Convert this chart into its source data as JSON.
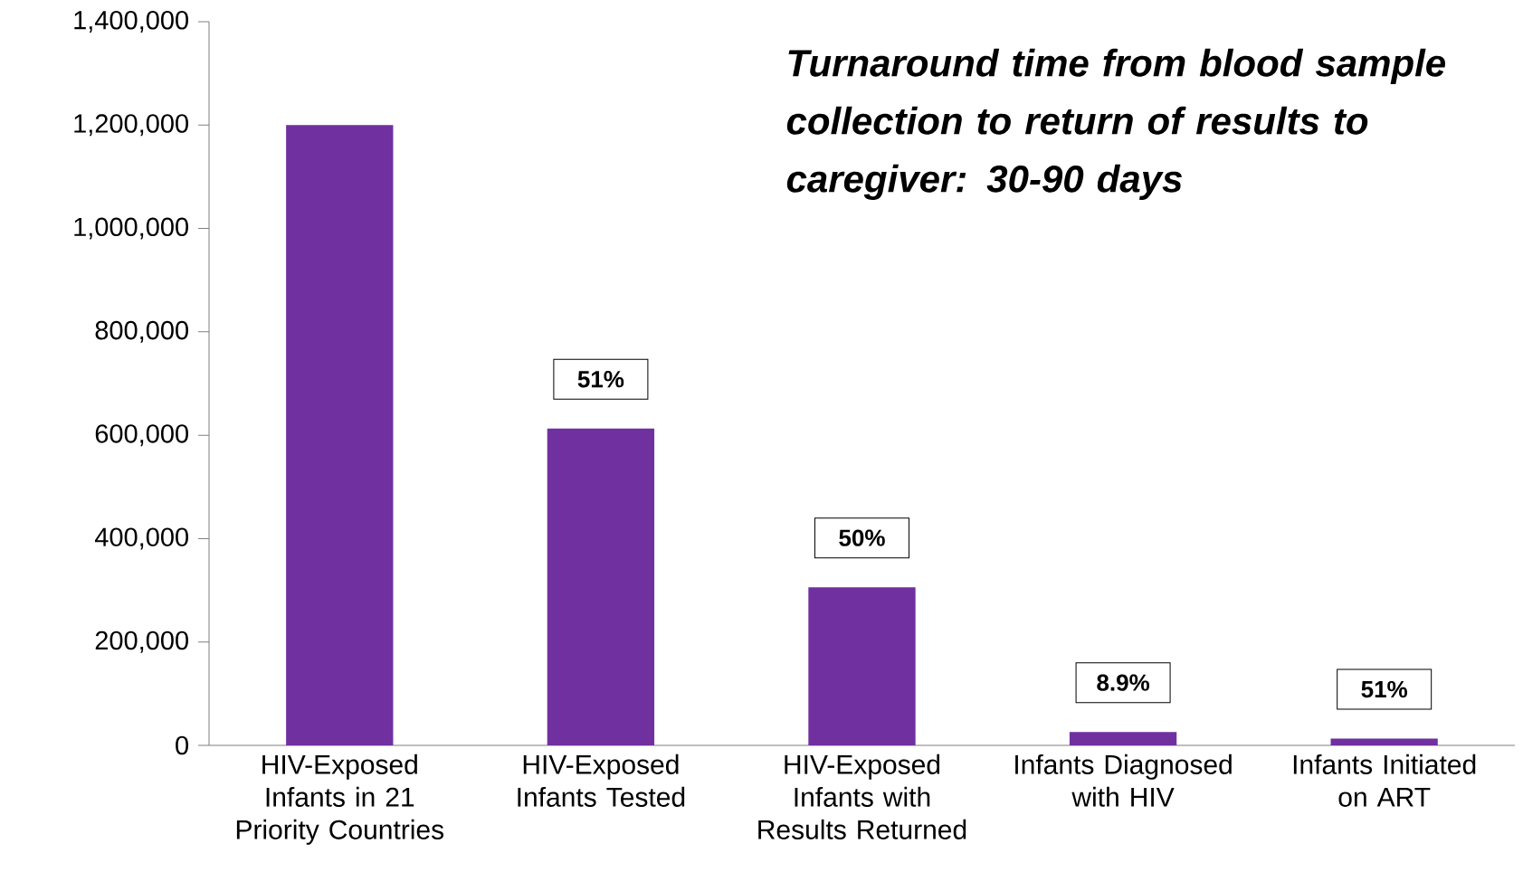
{
  "chart_data": {
    "type": "bar",
    "categories": [
      "HIV-Exposed Infants in 21 Priority Countries",
      "HIV-Exposed Infants Tested",
      "HIV-Exposed Infants with Results Returned",
      "Infants Diagnosed with HIV",
      "Infants Initiated on ART"
    ],
    "values": [
      1200000,
      613000,
      306000,
      26000,
      13000
    ],
    "color": "#7030a0",
    "ylim": [
      0,
      1400000
    ],
    "yticks": [
      {
        "value": 0,
        "label": "0"
      },
      {
        "value": 200000,
        "label": "200,000"
      },
      {
        "value": 400000,
        "label": "400,000"
      },
      {
        "value": 600000,
        "label": "600,000"
      },
      {
        "value": 800000,
        "label": "800,000"
      },
      {
        "value": 1000000,
        "label": "1,000,000"
      },
      {
        "value": 1200000,
        "label": "1,200,000"
      },
      {
        "value": 1400000,
        "label": "1,400,000"
      }
    ],
    "annotations": [
      "Turnaround time from blood sample collection to return of results to caregiver: 30-90 days",
      {
        "text": "51%",
        "x": "HIV-Exposed Infants Tested",
        "y": 613000
      },
      {
        "text": "50%",
        "x": "HIV-Exposed Infants with Results Returned",
        "y": 306000
      },
      {
        "text": "8.9%",
        "x": "Infants Diagnosed with HIV",
        "y": 26000
      },
      {
        "text": "51%",
        "x": "Infants Initiated on ART",
        "y": 13000
      }
    ]
  }
}
